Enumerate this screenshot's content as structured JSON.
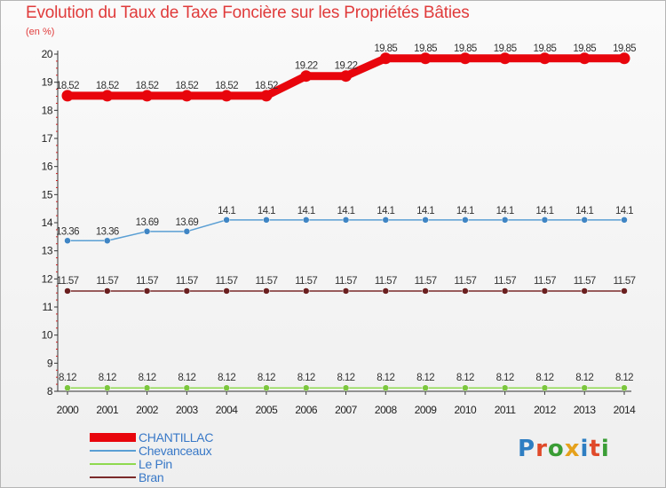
{
  "page": {
    "title": "Evolution du Taux de Taxe Foncière sur les Propriétés Bâties",
    "unit_label": "(en %)"
  },
  "logo": {
    "text": "Proxiti",
    "letter_colors": [
      "#2e7ec2",
      "#e04a2a",
      "#3a9d35",
      "#e5a11c",
      "#2e7ec2",
      "#e04a2a",
      "#3a9d35"
    ]
  },
  "chart_data": {
    "type": "line",
    "title": "Evolution du Taux de Taxe Foncière sur les Propriétés Bâties",
    "ylabel": "(en %)",
    "xlabel": "",
    "ylim": [
      8,
      20
    ],
    "yticks": [
      8,
      9,
      10,
      11,
      12,
      13,
      14,
      15,
      16,
      17,
      18,
      19,
      20
    ],
    "x": [
      2000,
      2001,
      2002,
      2003,
      2004,
      2005,
      2006,
      2007,
      2008,
      2009,
      2010,
      2011,
      2012,
      2013,
      2014
    ],
    "series": [
      {
        "name": "CHANTILLAC",
        "color": "#e8050c",
        "values": [
          18.52,
          18.52,
          18.52,
          18.52,
          18.52,
          18.52,
          19.22,
          19.22,
          19.85,
          19.85,
          19.85,
          19.85,
          19.85,
          19.85,
          19.85
        ],
        "labels": [
          "18.52",
          "18.52",
          "18.52",
          "18.52",
          "18.52",
          "18.52",
          "19.22",
          "19.22",
          "19.85",
          "19.85",
          "19.85",
          "19.85",
          "19.85",
          "19.85",
          "19.85"
        ]
      },
      {
        "name": "Chevanceaux",
        "color": "#5a9fd4",
        "values": [
          13.36,
          13.36,
          13.69,
          13.69,
          14.1,
          14.1,
          14.1,
          14.1,
          14.1,
          14.1,
          14.1,
          14.1,
          14.1,
          14.1,
          14.1
        ],
        "labels": [
          "13.36",
          "13.36",
          "13.69",
          "13.69",
          "14.1",
          "14.1",
          "14.1",
          "14.1",
          "14.1",
          "14.1",
          "14.1",
          "14.1",
          "14.1",
          "14.1",
          "14.1"
        ]
      },
      {
        "name": "Le Pin",
        "color": "#8fd94f",
        "values": [
          8.12,
          8.12,
          8.12,
          8.12,
          8.12,
          8.12,
          8.12,
          8.12,
          8.12,
          8.12,
          8.12,
          8.12,
          8.12,
          8.12,
          8.12
        ],
        "labels": [
          "8.12",
          "8.12",
          "8.12",
          "8.12",
          "8.12",
          "8.12",
          "8.12",
          "8.12",
          "8.12",
          "8.12",
          "8.12",
          "8.12",
          "8.12",
          "8.12",
          "8.12"
        ]
      },
      {
        "name": "Bran",
        "color": "#7a2a2a",
        "values": [
          11.57,
          11.57,
          11.57,
          11.57,
          11.57,
          11.57,
          11.57,
          11.57,
          11.57,
          11.57,
          11.57,
          11.57,
          11.57,
          11.57,
          11.57
        ],
        "labels": [
          "11.57",
          "11.57",
          "11.57",
          "11.57",
          "11.57",
          "11.57",
          "11.57",
          "11.57",
          "11.57",
          "11.57",
          "11.57",
          "11.57",
          "11.57",
          "11.57",
          "11.57"
        ]
      }
    ],
    "legend": [
      "CHANTILLAC",
      "Chevanceaux",
      "Le Pin",
      "Bran"
    ],
    "legend_position": "bottom-left",
    "grid": false
  }
}
